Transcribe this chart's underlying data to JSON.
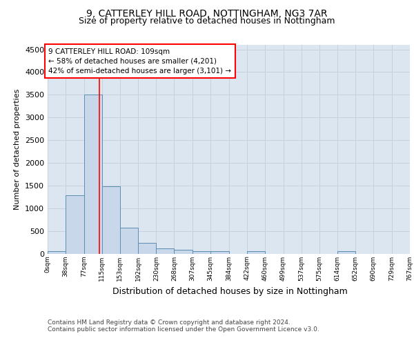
{
  "title1": "9, CATTERLEY HILL ROAD, NOTTINGHAM, NG3 7AR",
  "title2": "Size of property relative to detached houses in Nottingham",
  "xlabel": "Distribution of detached houses by size in Nottingham",
  "ylabel": "Number of detached properties",
  "bin_edges": [
    0,
    38,
    77,
    115,
    153,
    192,
    230,
    268,
    307,
    345,
    384,
    422,
    460,
    499,
    537,
    575,
    614,
    652,
    690,
    729,
    767
  ],
  "bar_heights": [
    50,
    1280,
    3500,
    1480,
    575,
    240,
    115,
    85,
    55,
    50,
    0,
    55,
    0,
    0,
    0,
    0,
    50,
    0,
    0,
    0
  ],
  "bar_color": "#c8d8ea",
  "bar_edge_color": "#5b8db0",
  "bar_linewidth": 0.7,
  "property_size": 109,
  "vline_color": "red",
  "vline_linewidth": 1.2,
  "annotation_text": "9 CATTERLEY HILL ROAD: 109sqm\n← 58% of detached houses are smaller (4,201)\n42% of semi-detached houses are larger (3,101) →",
  "annotation_fontsize": 7.5,
  "box_edge_color": "red",
  "box_face_color": "white",
  "ylim": [
    0,
    4600
  ],
  "yticks": [
    0,
    500,
    1000,
    1500,
    2000,
    2500,
    3000,
    3500,
    4000,
    4500
  ],
  "grid_color": "#c8d0de",
  "axes_background": "#dce6f0",
  "title1_fontsize": 10,
  "title2_fontsize": 9,
  "xlabel_fontsize": 9,
  "ylabel_fontsize": 8,
  "tick_fontsize": 8,
  "xtick_fontsize": 6.5,
  "footer_line1": "Contains HM Land Registry data © Crown copyright and database right 2024.",
  "footer_line2": "Contains public sector information licensed under the Open Government Licence v3.0.",
  "footer_fontsize": 6.5
}
